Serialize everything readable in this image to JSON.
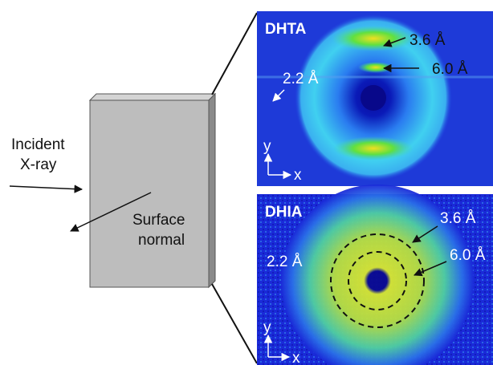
{
  "setup": {
    "incident": [
      "Incident",
      "X-ray"
    ],
    "surface": [
      "Surface",
      "normal"
    ]
  },
  "panels": [
    {
      "title": "DHTA",
      "spacings": [
        "3.6 Å",
        "6.0 Å",
        "2.2 Å"
      ],
      "axis_y": "y",
      "axis_x": "x"
    },
    {
      "title": "DHIA",
      "spacings": [
        "3.6 Å",
        "6.0 Å",
        "2.2 Å"
      ],
      "axis_y": "y",
      "axis_x": "x"
    }
  ]
}
